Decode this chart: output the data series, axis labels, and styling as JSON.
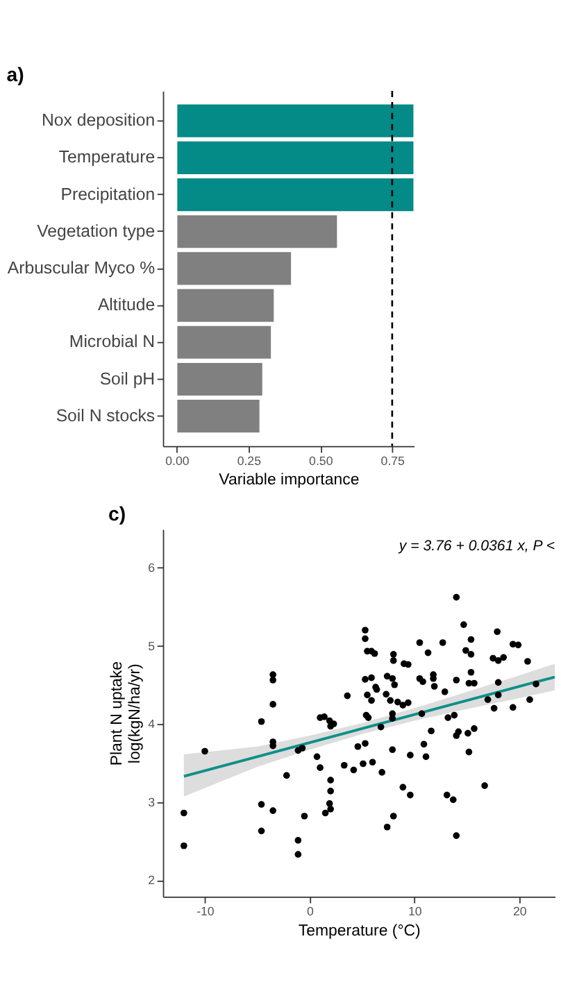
{
  "chart_data": [
    {
      "type": "bar",
      "title": "a)",
      "orientation": "horizontal",
      "categories": [
        "Nox deposition",
        "Temperature",
        "Precipitation",
        "Vegetation type",
        "Arbuscular Myco %",
        "Altitude",
        "Microbial N",
        "Soil pH",
        "Soil N stocks"
      ],
      "values": [
        0.826,
        0.826,
        0.826,
        0.56,
        0.4,
        0.34,
        0.33,
        0.3,
        0.29
      ],
      "colors": [
        "#048a87",
        "#048a87",
        "#048a87",
        "#808080",
        "#808080",
        "#808080",
        "#808080",
        "#808080",
        "#808080"
      ],
      "xlabel": "Variable importance",
      "xlim": [
        -0.048,
        0.826
      ],
      "xticks": [
        {
          "value": 0,
          "label": "0.00"
        },
        {
          "value": 0.25,
          "label": "0.25"
        },
        {
          "value": 0.5,
          "label": "0.50"
        },
        {
          "value": 0.75,
          "label": "0.75"
        }
      ],
      "ref_lines": [
        {
          "axis": "x",
          "value": 0.75,
          "color": "#000000",
          "line_style": "dashed"
        }
      ],
      "grid": false
    },
    {
      "type": "scatter",
      "title": "c)",
      "xlabel": "Temperature (°C)",
      "ylabel": "Plant N uptake\nlog(kgN/ha/yr)",
      "xlim": [
        -14,
        23.4
      ],
      "ylim": [
        1.79,
        6.49
      ],
      "xticks": [
        -10,
        0,
        10,
        20
      ],
      "yticks": [
        2,
        3,
        4,
        5,
        6
      ],
      "grid": false,
      "annotations": [
        "y = 3.76 + 0.0361 x, P <"
      ],
      "series": [
        {
          "type": "scatter",
          "color": "#000000",
          "marker": "circle",
          "x": [
            -12.0,
            -12.0,
            -10.0,
            -4.6,
            -4.6,
            -4.6,
            -3.5,
            -3.5,
            -3.5,
            -3.5,
            -3.5,
            -3.5,
            -2.2,
            -1.1,
            -1.1,
            -1.1,
            -0.7,
            -0.5,
            0.7,
            1.0,
            1.0,
            1.4,
            1.5,
            1.9,
            2.0,
            2.3,
            2.0,
            2.0,
            1.9,
            2.0,
            3.3,
            3.6,
            4.2,
            4.6,
            5.1,
            5.3,
            5.3,
            5.5,
            5.9,
            6.2,
            5.3,
            5.9,
            5.5,
            5.9,
            5.4,
            5.6,
            5.3,
            6.0,
            6.3,
            6.4,
            6.8,
            6.9,
            7.4,
            7.9,
            7.3,
            7.7,
            8.0,
            8.0,
            8.1,
            7.9,
            7.9,
            7.4,
            8.0,
            7.9,
            8.4,
            8.9,
            9.0,
            9.4,
            9.4,
            8.9,
            9.6,
            9.6,
            10.5,
            10.5,
            10.8,
            10.7,
            10.9,
            11.1,
            11.3,
            11.6,
            11.8,
            11.8,
            11.9,
            12.7,
            12.9,
            13.2,
            13.1,
            13.7,
            14.0,
            14.0,
            13.8,
            14.0,
            14.2,
            14.0,
            14.7,
            14.9,
            15.4,
            15.4,
            15.4,
            15.2,
            15.7,
            15.1,
            15.2,
            15.7,
            16.7,
            17.0,
            17.5,
            18.0,
            18.5,
            17.6,
            17.9,
            18.0,
            18.0,
            19.4,
            19.9,
            19.4,
            20.8,
            21.0,
            21.6
          ],
          "values": [
            2.86,
            2.44,
            3.65,
            4.03,
            2.97,
            2.63,
            3.77,
            3.72,
            4.25,
            4.56,
            4.63,
            2.89,
            3.34,
            2.51,
            2.33,
            3.66,
            3.69,
            2.82,
            3.58,
            3.44,
            4.08,
            4.09,
            2.86,
            4.04,
            3.97,
            4.0,
            3.28,
            3.14,
            2.98,
            2.91,
            3.47,
            4.36,
            3.41,
            3.71,
            3.49,
            5.2,
            5.09,
            4.93,
            4.93,
            4.9,
            4.57,
            4.59,
            4.37,
            4.3,
            4.11,
            4.08,
            3.75,
            3.51,
            4.47,
            4.44,
            3.96,
            3.38,
            4.61,
            4.58,
            4.38,
            4.3,
            4.89,
            4.81,
            4.5,
            4.13,
            4.07,
            2.68,
            2.82,
            3.67,
            4.28,
            4.24,
            4.77,
            4.76,
            4.27,
            3.19,
            3.09,
            3.6,
            5.04,
            4.58,
            4.54,
            4.13,
            3.74,
            3.58,
            4.91,
            3.91,
            4.63,
            4.58,
            4.48,
            5.04,
            4.41,
            4.08,
            3.09,
            3.03,
            5.62,
            4.56,
            4.11,
            3.85,
            3.9,
            2.57,
            5.27,
            4.94,
            5.08,
            4.89,
            4.66,
            4.52,
            4.52,
            3.88,
            3.64,
            3.94,
            3.21,
            4.31,
            4.84,
            4.81,
            4.85,
            4.2,
            5.18,
            4.53,
            4.37,
            5.02,
            5.01,
            4.21,
            4.8,
            4.31,
            4.51
          ]
        },
        {
          "type": "line",
          "color": "#0e8f8a",
          "line_style": "solid",
          "x": [
            -12,
            -5,
            0,
            5,
            10,
            15,
            20,
            23.4
          ],
          "values": [
            3.33,
            3.58,
            3.76,
            3.94,
            4.12,
            4.3,
            4.48,
            4.6
          ],
          "lower": [
            3.07,
            3.45,
            3.67,
            3.87,
            4.04,
            4.19,
            4.33,
            4.43
          ],
          "upper": [
            3.61,
            3.71,
            3.85,
            4.01,
            4.2,
            4.41,
            4.62,
            4.77
          ]
        }
      ]
    }
  ]
}
